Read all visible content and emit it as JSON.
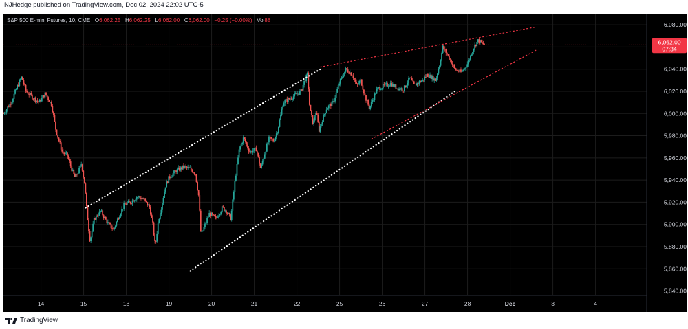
{
  "publish_line": "NJHedge published on TradingView.com, Dec 02, 2024 22:02 UTC-5",
  "legend": {
    "symbol": "S&P 500 E-mini Futures, 10, CME",
    "open_label": "O",
    "open": "6,062.25",
    "high_label": "H",
    "high": "6,062.25",
    "low_label": "L",
    "low": "6,062.00",
    "close_label": "C",
    "close": "6,062.00",
    "change": "−0.25 (−0.00%)",
    "vol_label": "Vol",
    "vol": "88"
  },
  "price_tag": {
    "price": "6,062.00",
    "countdown": "07:34"
  },
  "footer": {
    "brand": "TradingView"
  },
  "colors": {
    "background": "#000000",
    "up_candle": "#26a69a",
    "down_candle": "#ef5350",
    "channel_line": "#ffffff",
    "wedge_line": "#f23645",
    "price_tag": "#f23645",
    "grid": "#1c1c1c",
    "axis_text": "#d1d4dc"
  },
  "chart_data": {
    "type": "candlestick",
    "title": "S&P 500 E-mini Futures, 10, CME",
    "timeframe": "10",
    "ylim": [
      5836,
      6090
    ],
    "y_ticks": [
      5840,
      5860,
      5880,
      5900,
      5920,
      5940,
      5960,
      5980,
      6000,
      6020,
      6040,
      6060,
      6080
    ],
    "y_tick_labels": [
      "5,840.00",
      "5,860.00",
      "5,880.00",
      "5,900.00",
      "5,920.00",
      "5,940.00",
      "5,960.00",
      "5,980.00",
      "6,000.00",
      "6,020.00",
      "6,040.00",
      "6,060.00",
      "6,080.00"
    ],
    "x_ticks": [
      {
        "label": "14",
        "day": 1
      },
      {
        "label": "15",
        "day": 2
      },
      {
        "label": "18",
        "day": 3
      },
      {
        "label": "19",
        "day": 4
      },
      {
        "label": "20",
        "day": 5
      },
      {
        "label": "21",
        "day": 6
      },
      {
        "label": "22",
        "day": 7
      },
      {
        "label": "25",
        "day": 8
      },
      {
        "label": "26",
        "day": 9
      },
      {
        "label": "27",
        "day": 10
      },
      {
        "label": "28",
        "day": 11
      },
      {
        "label": "Dec",
        "day": 12
      },
      {
        "label": "3",
        "day": 13
      },
      {
        "label": "4",
        "day": 14
      }
    ],
    "xlim": [
      0.12,
      15.2
    ],
    "last_price": 6062.0,
    "price_path": [
      [
        0.12,
        6000
      ],
      [
        0.3,
        6010
      ],
      [
        0.45,
        6025
      ],
      [
        0.55,
        6033
      ],
      [
        0.65,
        6020
      ],
      [
        0.8,
        6015
      ],
      [
        0.95,
        6010
      ],
      [
        1.1,
        6018
      ],
      [
        1.25,
        6008
      ],
      [
        1.35,
        5985
      ],
      [
        1.5,
        5965
      ],
      [
        1.62,
        5962
      ],
      [
        1.7,
        5952
      ],
      [
        1.8,
        5942
      ],
      [
        1.88,
        5948
      ],
      [
        1.95,
        5955
      ],
      [
        2.03,
        5935
      ],
      [
        2.08,
        5910
      ],
      [
        2.15,
        5885
      ],
      [
        2.25,
        5905
      ],
      [
        2.4,
        5912
      ],
      [
        2.55,
        5902
      ],
      [
        2.7,
        5895
      ],
      [
        2.8,
        5905
      ],
      [
        2.95,
        5918
      ],
      [
        3.1,
        5920
      ],
      [
        3.25,
        5925
      ],
      [
        3.4,
        5923
      ],
      [
        3.55,
        5915
      ],
      [
        3.62,
        5900
      ],
      [
        3.68,
        5880
      ],
      [
        3.75,
        5903
      ],
      [
        3.82,
        5915
      ],
      [
        3.92,
        5935
      ],
      [
        4.0,
        5942
      ],
      [
        4.15,
        5948
      ],
      [
        4.35,
        5952
      ],
      [
        4.5,
        5950
      ],
      [
        4.62,
        5946
      ],
      [
        4.7,
        5925
      ],
      [
        4.75,
        5890
      ],
      [
        4.85,
        5900
      ],
      [
        4.95,
        5910
      ],
      [
        5.1,
        5905
      ],
      [
        5.25,
        5915
      ],
      [
        5.35,
        5912
      ],
      [
        5.45,
        5905
      ],
      [
        5.55,
        5940
      ],
      [
        5.65,
        5968
      ],
      [
        5.75,
        5978
      ],
      [
        5.9,
        5965
      ],
      [
        6.05,
        5968
      ],
      [
        6.15,
        5950
      ],
      [
        6.25,
        5965
      ],
      [
        6.35,
        5978
      ],
      [
        6.45,
        5975
      ],
      [
        6.55,
        5985
      ],
      [
        6.68,
        6010
      ],
      [
        6.9,
        6015
      ],
      [
        7.1,
        6020
      ],
      [
        7.18,
        6030
      ],
      [
        7.25,
        6035
      ],
      [
        7.3,
        6005
      ],
      [
        7.38,
        5990
      ],
      [
        7.45,
        6002
      ],
      [
        7.52,
        5985
      ],
      [
        7.6,
        5995
      ],
      [
        7.7,
        6005
      ],
      [
        7.85,
        6010
      ],
      [
        8.0,
        6028
      ],
      [
        8.15,
        6040
      ],
      [
        8.3,
        6035
      ],
      [
        8.4,
        6025
      ],
      [
        8.5,
        6030
      ],
      [
        8.6,
        6015
      ],
      [
        8.7,
        6005
      ],
      [
        8.78,
        6013
      ],
      [
        8.88,
        6022
      ],
      [
        9.05,
        6025
      ],
      [
        9.2,
        6027
      ],
      [
        9.35,
        6023
      ],
      [
        9.5,
        6022
      ],
      [
        9.65,
        6032
      ],
      [
        9.75,
        6025
      ],
      [
        9.85,
        6028
      ],
      [
        9.95,
        6030
      ],
      [
        10.05,
        6035
      ],
      [
        10.15,
        6033
      ],
      [
        10.25,
        6030
      ],
      [
        10.35,
        6045
      ],
      [
        10.42,
        6060
      ],
      [
        10.5,
        6055
      ],
      [
        10.6,
        6048
      ],
      [
        10.7,
        6040
      ],
      [
        10.85,
        6037
      ],
      [
        11.0,
        6045
      ],
      [
        11.15,
        6060
      ],
      [
        11.25,
        6066
      ],
      [
        11.35,
        6063
      ],
      [
        11.42,
        6062
      ]
    ],
    "trendlines": [
      {
        "style": "dotted",
        "color": "white",
        "from": [
          2.05,
          5915
        ],
        "to": [
          7.55,
          6040
        ],
        "extended": true
      },
      {
        "style": "dotted",
        "color": "white",
        "from": [
          4.5,
          5858
        ],
        "to": [
          10.7,
          6020
        ],
        "extended": true
      },
      {
        "style": "dotted",
        "color": "red",
        "from": [
          7.55,
          6042
        ],
        "to": [
          12.6,
          6078
        ],
        "extended": true
      },
      {
        "style": "dotted",
        "color": "red",
        "from": [
          8.75,
          5977
        ],
        "to": [
          12.6,
          6057
        ],
        "extended": true
      }
    ]
  }
}
